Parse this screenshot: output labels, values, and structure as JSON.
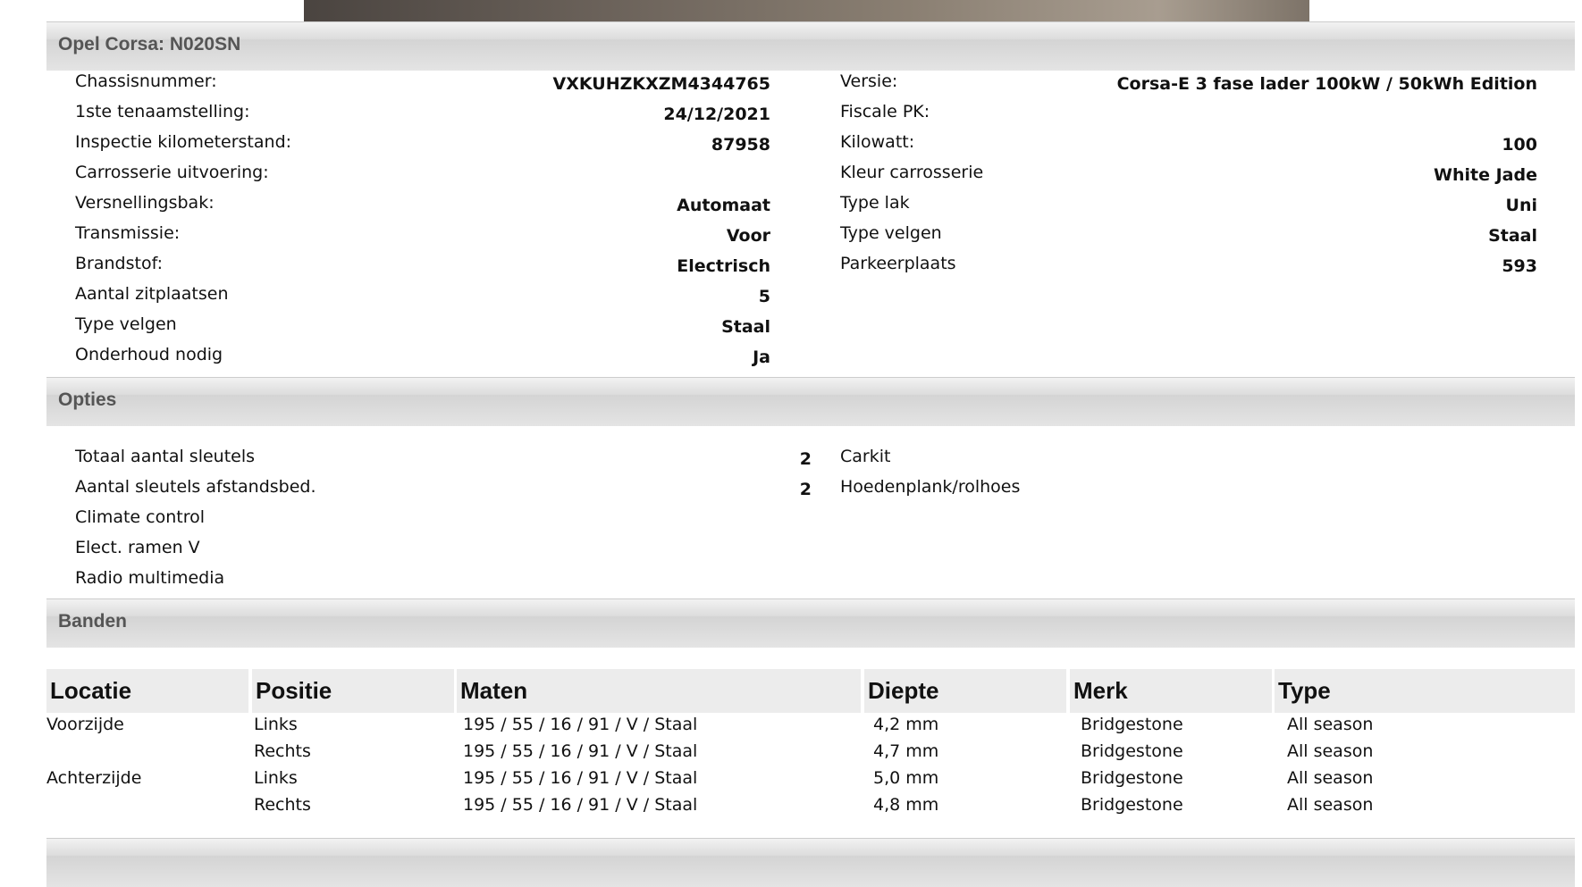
{
  "vehicle_header": "Opel Corsa: N020SN",
  "details_left": [
    {
      "label": "Chassisnummer:",
      "value": "VXKUHZKXZM4344765"
    },
    {
      "label": "1ste tenaamstelling:",
      "value": "24/12/2021"
    },
    {
      "label": "Inspectie kilometerstand:",
      "value": "87958"
    },
    {
      "label": "Carrosserie uitvoering:",
      "value": ""
    },
    {
      "label": "Versnellingsbak:",
      "value": "Automaat"
    },
    {
      "label": "Transmissie:",
      "value": "Voor"
    },
    {
      "label": "Brandstof:",
      "value": "Electrisch"
    },
    {
      "label": "Aantal zitplaatsen",
      "value": "5"
    },
    {
      "label": "Type velgen",
      "value": "Staal"
    },
    {
      "label": "Onderhoud nodig",
      "value": "Ja"
    }
  ],
  "details_right": [
    {
      "label": "Versie:",
      "value": "Corsa-E 3 fase lader 100kW / 50kWh Edition"
    },
    {
      "label": "Fiscale PK:",
      "value": ""
    },
    {
      "label": "Kilowatt:",
      "value": "100"
    },
    {
      "label": "Kleur carrosserie",
      "value": "White Jade"
    },
    {
      "label": "Type lak",
      "value": "Uni"
    },
    {
      "label": "Type velgen",
      "value": "Staal"
    },
    {
      "label": "Parkeerplaats",
      "value": "593"
    }
  ],
  "options_header": "Opties",
  "options_left": [
    {
      "label": "Totaal aantal sleutels",
      "value": "2"
    },
    {
      "label": "Aantal sleutels afstandsbed.",
      "value": "2"
    },
    {
      "label": "Climate control",
      "value": ""
    },
    {
      "label": "Elect. ramen V",
      "value": ""
    },
    {
      "label": "Radio multimedia",
      "value": ""
    }
  ],
  "options_right": [
    "Carkit",
    "Hoedenplank/rolhoes"
  ],
  "tires_header": "Banden",
  "tires_columns": [
    "Locatie",
    "Positie",
    "Maten",
    "Diepte",
    "Merk",
    "Type"
  ],
  "tires_rows": [
    [
      "Voorzijde",
      "Links",
      "195 / 55 / 16 / 91 / V / Staal",
      "4,2 mm",
      "Bridgestone",
      "All season"
    ],
    [
      "",
      "Rechts",
      "195 / 55 / 16 / 91 / V / Staal",
      "4,7 mm",
      "Bridgestone",
      "All season"
    ],
    [
      "Achterzijde",
      "Links",
      "195 / 55 / 16 / 91 / V / Staal",
      "5,0 mm",
      "Bridgestone",
      "All season"
    ],
    [
      "",
      "Rechts",
      "195 / 55 / 16 / 91 / V / Staal",
      "4,8 mm",
      "Bridgestone",
      "All season"
    ]
  ]
}
